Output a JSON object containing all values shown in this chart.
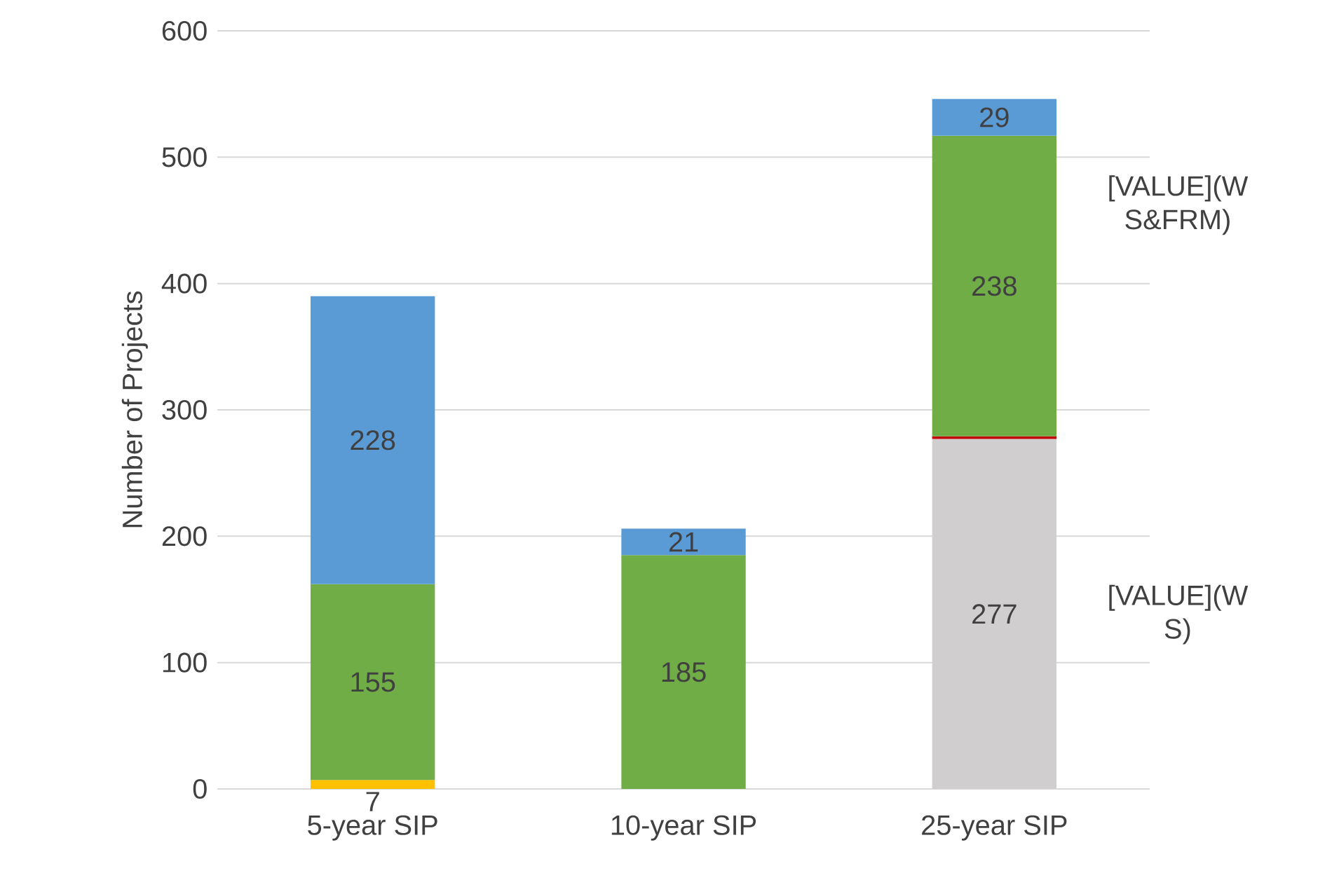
{
  "chart_data": {
    "type": "bar",
    "stacked": true,
    "ylabel": "Number of Projects",
    "categories": [
      "5-year SIP",
      "10-year SIP",
      "25-year SIP"
    ],
    "series": [
      {
        "color": "#d0cece",
        "values": [
          null,
          null,
          277
        ],
        "value_labels": [
          null,
          null,
          "277"
        ]
      },
      {
        "color": "#c00000",
        "values": [
          null,
          null,
          2
        ],
        "value_labels": [
          null,
          null,
          null
        ]
      },
      {
        "color": "#ffc000",
        "values": [
          7,
          null,
          null
        ],
        "value_labels": [
          "7",
          null,
          null
        ]
      },
      {
        "color": "#70ad47",
        "values": [
          155,
          185,
          238
        ],
        "value_labels": [
          "155",
          "185",
          "238"
        ]
      },
      {
        "color": "#5b9bd5",
        "values": [
          228,
          21,
          29
        ],
        "value_labels": [
          "228",
          "21",
          "29"
        ]
      }
    ],
    "ylim": [
      0,
      600
    ],
    "yticks": [
      0,
      100,
      200,
      300,
      400,
      500,
      600
    ],
    "grid": "y",
    "annotations": [
      "[VALUE](W S&FRM)",
      "[VALUE](W S)"
    ]
  }
}
